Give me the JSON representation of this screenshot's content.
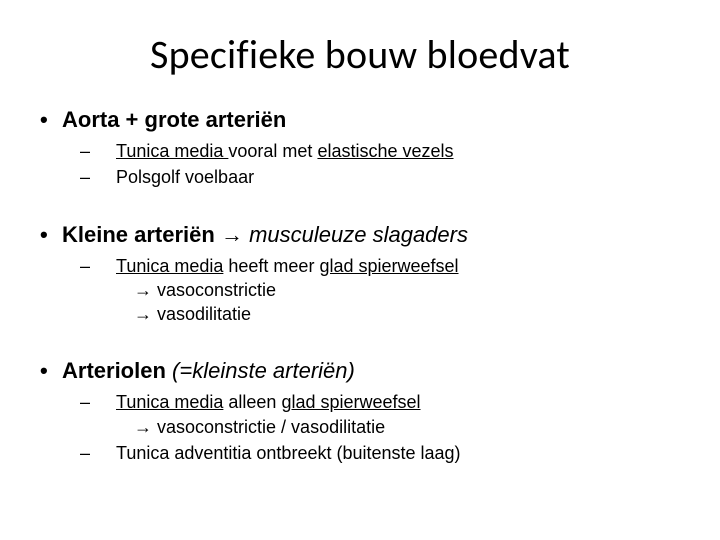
{
  "title": "Specifieke bouw bloedvat",
  "bullets": {
    "b1": {
      "label": "Aorta + grote arteriën",
      "s1_pre": "Tunica media ",
      "s1_mid": "vooral met ",
      "s1_u2": "elastische vezels",
      "s2": "Polsgolf voelbaar"
    },
    "b2": {
      "label_bold": "Kleine arteriën",
      "arrow": " → ",
      "label_italic": "musculeuze slagaders",
      "s1_u1": "Tunica media",
      "s1_mid": " heeft meer ",
      "s1_u2": "glad spierweefsel",
      "s2": "→ vasoconstrictie",
      "s3": "→ vasodilitatie"
    },
    "b3": {
      "label_bold": "Arteriolen ",
      "label_italic": "(=kleinste arteriën)",
      "s1_u1": "Tunica media",
      "s1_mid": " alleen ",
      "s1_u2": "glad spierweefsel",
      "s2": "→ vasoconstrictie / vasodilitatie",
      "s3": "Tunica adventitia ontbreekt (buitenste laag)"
    }
  },
  "glyphs": {
    "bullet": "•",
    "dash": "–"
  }
}
